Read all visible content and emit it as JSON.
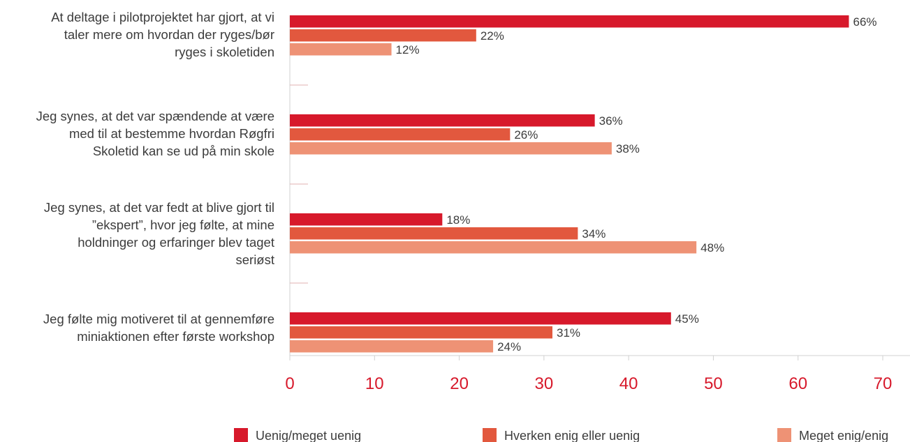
{
  "chart_data": {
    "type": "bar",
    "orientation": "horizontal",
    "categories": [
      [
        "At deltage i pilotprojektet har gjort, at vi",
        "taler mere om hvordan der ryges/bør",
        "ryges i skoletiden"
      ],
      [
        "Jeg synes, at det var spændende at være",
        "med til at bestemme hvordan Røgfri",
        "Skoletid kan se ud på min skole"
      ],
      [
        "Jeg synes, at det var fedt at blive gjort til",
        "”ekspert”, hvor jeg følte, at mine",
        "holdninger og erfaringer blev taget",
        "seriøst"
      ],
      [
        "Jeg følte mig motiveret til at gennemføre",
        "miniaktionen efter første workshop"
      ]
    ],
    "series": [
      {
        "name": "Uenig/meget uenig",
        "color": "#d7192b",
        "values": [
          66,
          36,
          18,
          45
        ],
        "labels": [
          "66%",
          "36%",
          "18%",
          "45%"
        ]
      },
      {
        "name": "Hverken enig eller uenig",
        "color": "#e2583e",
        "values": [
          22,
          26,
          34,
          31
        ],
        "labels": [
          "22%",
          "26%",
          "34%",
          "31%"
        ]
      },
      {
        "name": "Meget enig/enig",
        "color": "#ee9275",
        "values": [
          12,
          38,
          48,
          24
        ],
        "labels": [
          "12%",
          "38%",
          "48%",
          "24%"
        ]
      }
    ],
    "xlim": [
      0,
      73
    ],
    "xticks": [
      "0",
      "10",
      "20",
      "30",
      "40",
      "50",
      "60",
      "70"
    ],
    "tick_color": "#d7192b",
    "grid": false,
    "legend_position": "bottom"
  }
}
